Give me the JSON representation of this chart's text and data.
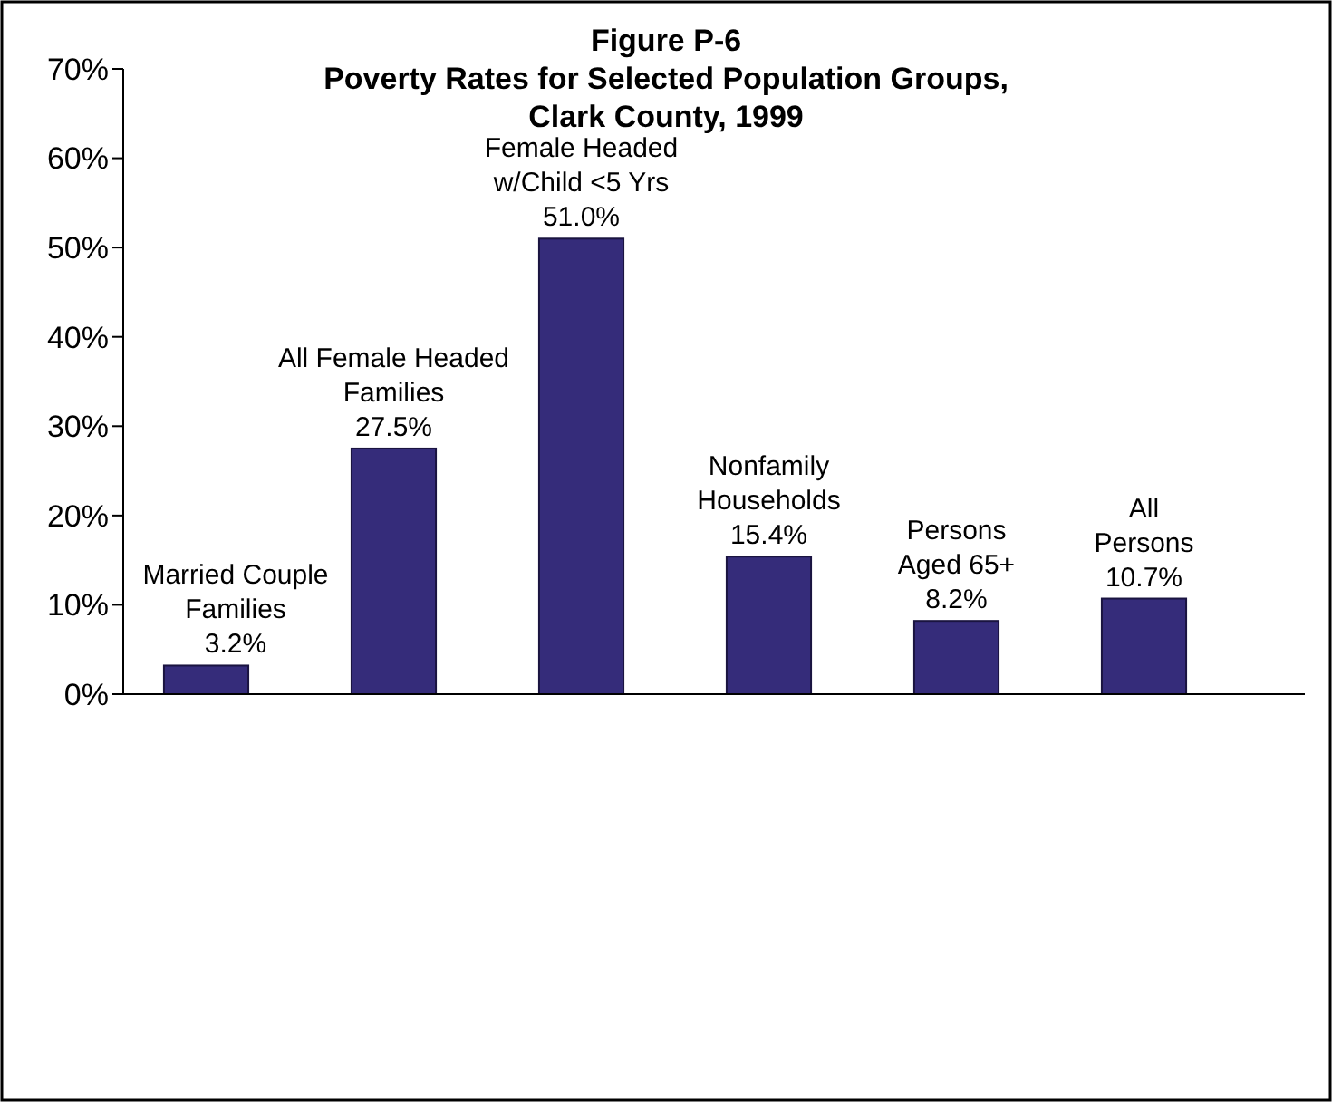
{
  "chart_data": {
    "type": "bar",
    "title": "Figure P-6",
    "subtitle": "Poverty Rates for Selected Population Groups,\nClark County, 1999",
    "categories": [
      "Married Couple\nFamilies",
      "All Female Headed\nFamilies",
      "Female Headed\nw/Child <5 Yrs",
      "Nonfamily\nHouseholds",
      "Persons\nAged 65+",
      "All\nPersons"
    ],
    "values": [
      3.2,
      27.5,
      51.0,
      15.4,
      8.2,
      10.7
    ],
    "value_labels": [
      "3.2%",
      "27.5%",
      "51.0%",
      "15.4%",
      "8.2%",
      "10.7%"
    ],
    "color": "#352c7a",
    "ylim": [
      0,
      70
    ],
    "yticks": [
      {
        "value": 0,
        "label": "0%"
      },
      {
        "value": 10,
        "label": "10%"
      },
      {
        "value": 20,
        "label": "20%"
      },
      {
        "value": 30,
        "label": "30%"
      },
      {
        "value": 40,
        "label": "40%"
      },
      {
        "value": 50,
        "label": "50%"
      },
      {
        "value": 60,
        "label": "60%"
      },
      {
        "value": 70,
        "label": "70%"
      }
    ]
  }
}
